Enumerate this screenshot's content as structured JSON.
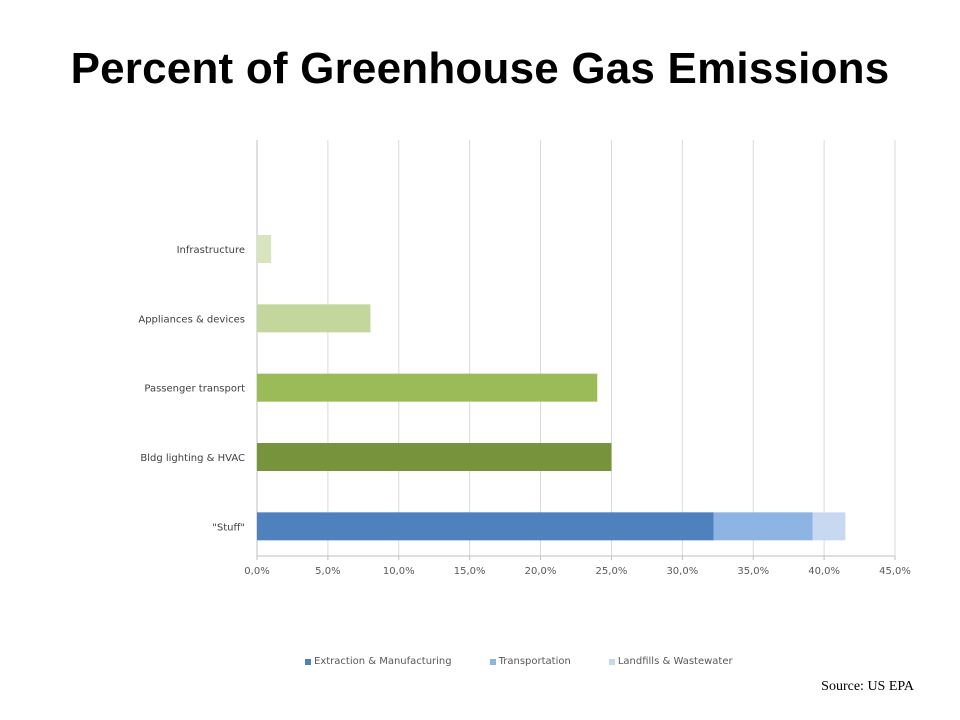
{
  "title": "Percent of Greenhouse Gas Emissions",
  "source": "Source: US EPA",
  "chart_data": {
    "type": "bar",
    "orientation": "horizontal",
    "stacked": true,
    "title": "Percent of Greenhouse Gas Emissions",
    "categories": [
      "\"Stuff\"",
      "Bldg lighting & HVAC",
      "Passenger transport",
      "Appliances & devices",
      "Infrastructure"
    ],
    "series": [
      {
        "name": "Extraction & Manufacturing",
        "color": "#4f81bd",
        "values": [
          32.2,
          null,
          null,
          null,
          null
        ]
      },
      {
        "name": "Transportation",
        "color": "#8eb4e3",
        "values": [
          7.0,
          null,
          null,
          null,
          null
        ]
      },
      {
        "name": "Landfills & Wastewater",
        "color": "#c6d9f1",
        "values": [
          2.3,
          null,
          null,
          null,
          null
        ]
      }
    ],
    "single_bars": [
      {
        "category": "Bldg lighting & HVAC",
        "value": 25.0,
        "color": "#77933c"
      },
      {
        "category": "Passenger transport",
        "value": 24.0,
        "color": "#9bbb59"
      },
      {
        "category": "Appliances & devices",
        "value": 8.0,
        "color": "#c3d69b"
      },
      {
        "category": "Infrastructure",
        "value": 1.0,
        "color": "#d7e4bd"
      }
    ],
    "xlim": [
      0,
      45
    ],
    "xticks": [
      "0,0%",
      "5,0%",
      "10,0%",
      "15,0%",
      "20,0%",
      "25,0%",
      "30,0%",
      "35,0%",
      "40,0%",
      "45,0%"
    ],
    "grid": "vertical",
    "legend": "bottom"
  }
}
